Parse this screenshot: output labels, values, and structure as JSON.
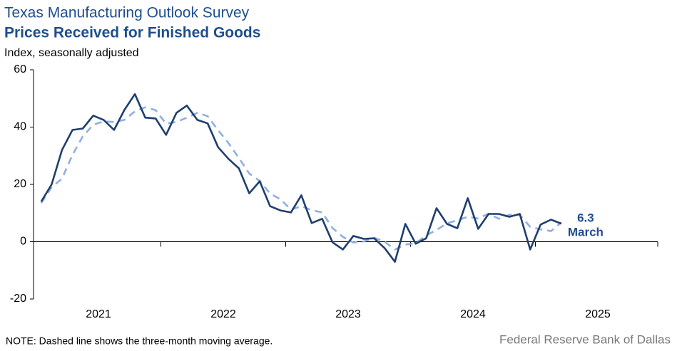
{
  "chart_data": {
    "type": "line",
    "title": "Texas Manufacturing Outlook Survey",
    "subtitle": "Prices Received for Finished Goods",
    "y_label": "Index, seasonally adjusted",
    "note": "NOTE: Dashed line shows the three-month  moving average.",
    "source": "Federal Reserve Bank of Dallas",
    "annotation": "March",
    "x": [
      2021.042,
      2021.125,
      2021.208,
      2021.292,
      2021.375,
      2021.458,
      2021.542,
      2021.625,
      2021.708,
      2021.792,
      2021.875,
      2021.958,
      2022.042,
      2022.125,
      2022.208,
      2022.292,
      2022.375,
      2022.458,
      2022.542,
      2022.625,
      2022.708,
      2022.792,
      2022.875,
      2022.958,
      2023.042,
      2023.125,
      2023.208,
      2023.292,
      2023.375,
      2023.458,
      2023.542,
      2023.625,
      2023.708,
      2023.792,
      2023.875,
      2023.958,
      2024.042,
      2024.125,
      2024.208,
      2024.292,
      2024.375,
      2024.458,
      2024.542,
      2024.625,
      2024.708,
      2024.792,
      2024.875,
      2024.958,
      2025.042,
      2025.125,
      2025.208
    ],
    "series": [
      {
        "color": "#1f3f6e",
        "dashed": false,
        "values": [
          14,
          20,
          32,
          39,
          39.5,
          44,
          42.5,
          39,
          46,
          51.5,
          43.3,
          43,
          37.3,
          45,
          47.5,
          42.5,
          41.3,
          33,
          28.9,
          25.6,
          16.9,
          21.1,
          12.4,
          10.9,
          10.2,
          16.2,
          6.5,
          8,
          -0.2,
          -2.7,
          2,
          1,
          1.2,
          -2.2,
          -7,
          6.2,
          -0.7,
          1.2,
          11.7,
          6.2,
          4.7,
          15.2,
          4.5,
          9.7,
          9.7,
          8.7,
          9.7,
          -2.7,
          6,
          7.7,
          6.3
        ]
      },
      {
        "color": "#8fb0dc",
        "dashed": true,
        "values": [
          13.5,
          19,
          22,
          30.3,
          36.8,
          40.8,
          42,
          41.8,
          42.5,
          45.5,
          46.9,
          45.9,
          41.2,
          41.8,
          43.3,
          45,
          43.8,
          38.9,
          34.4,
          29.2,
          23.8,
          21.2,
          16.8,
          14.8,
          11.2,
          12.4,
          11,
          10.2,
          4.8,
          1.7,
          -0.3,
          0.1,
          1.4,
          0,
          -2.7,
          -1,
          -0.5,
          2.2,
          4.1,
          6.4,
          7.5,
          8.7,
          8.1,
          9.8,
          8,
          9.4,
          9.4,
          5.2,
          4.3,
          3.7,
          6.7
        ]
      }
    ],
    "xlim": [
      2020.98,
      2025.98
    ],
    "xticks": [
      {
        "value": 2021.5,
        "label": "2021"
      },
      {
        "value": 2022.5,
        "label": "2022"
      },
      {
        "value": 2023.5,
        "label": "2023"
      },
      {
        "value": 2024.5,
        "label": "2024"
      },
      {
        "value": 2025.5,
        "label": "2025"
      }
    ],
    "xminor_ticks": [
      2022,
      2023,
      2024,
      2025,
      2025.98
    ],
    "ylim": [
      -20,
      60
    ],
    "yticks": [
      -20,
      0,
      20,
      40,
      60
    ]
  }
}
